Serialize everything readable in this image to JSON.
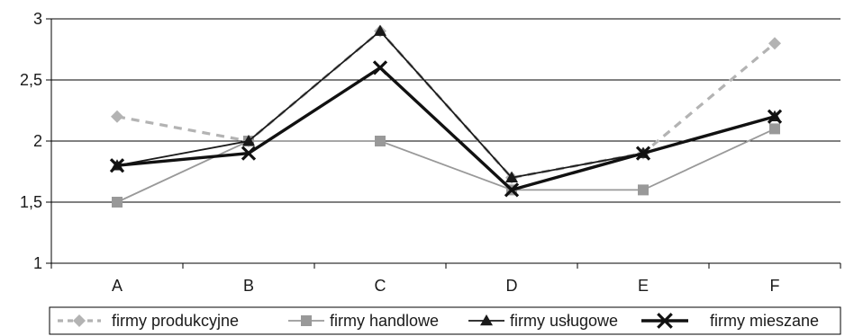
{
  "chart_data": {
    "type": "line",
    "title": "",
    "xlabel": "",
    "ylabel": "",
    "categories": [
      "A",
      "B",
      "C",
      "D",
      "E",
      "F"
    ],
    "ylim": [
      1,
      3
    ],
    "y_ticks": [
      1,
      1.5,
      2,
      2.5,
      3
    ],
    "y_tick_labels": [
      "1",
      "1,5",
      "2",
      "2,5",
      "3"
    ],
    "grid": "horizontal",
    "legend_position": "bottom",
    "series": [
      {
        "name": "firmy produkcyjne",
        "values": [
          2.2,
          2.0,
          2.9,
          1.7,
          1.9,
          2.8
        ],
        "color": "#b3b3b3",
        "line_style": "dashed",
        "marker": "diamond"
      },
      {
        "name": "firmy handlowe",
        "values": [
          1.5,
          2.0,
          2.0,
          1.6,
          1.6,
          2.1
        ],
        "color": "#999999",
        "line_style": "solid",
        "marker": "square"
      },
      {
        "name": "firmy usługowe",
        "values": [
          1.8,
          2.0,
          2.9,
          1.7,
          1.9,
          2.2
        ],
        "color": "#1a1a1a",
        "line_style": "solid",
        "marker": "triangle"
      },
      {
        "name": "firmy mieszane",
        "values": [
          1.8,
          1.9,
          2.6,
          1.6,
          1.9,
          2.2
        ],
        "color": "#111111",
        "line_style": "thick",
        "marker": "x"
      }
    ]
  }
}
